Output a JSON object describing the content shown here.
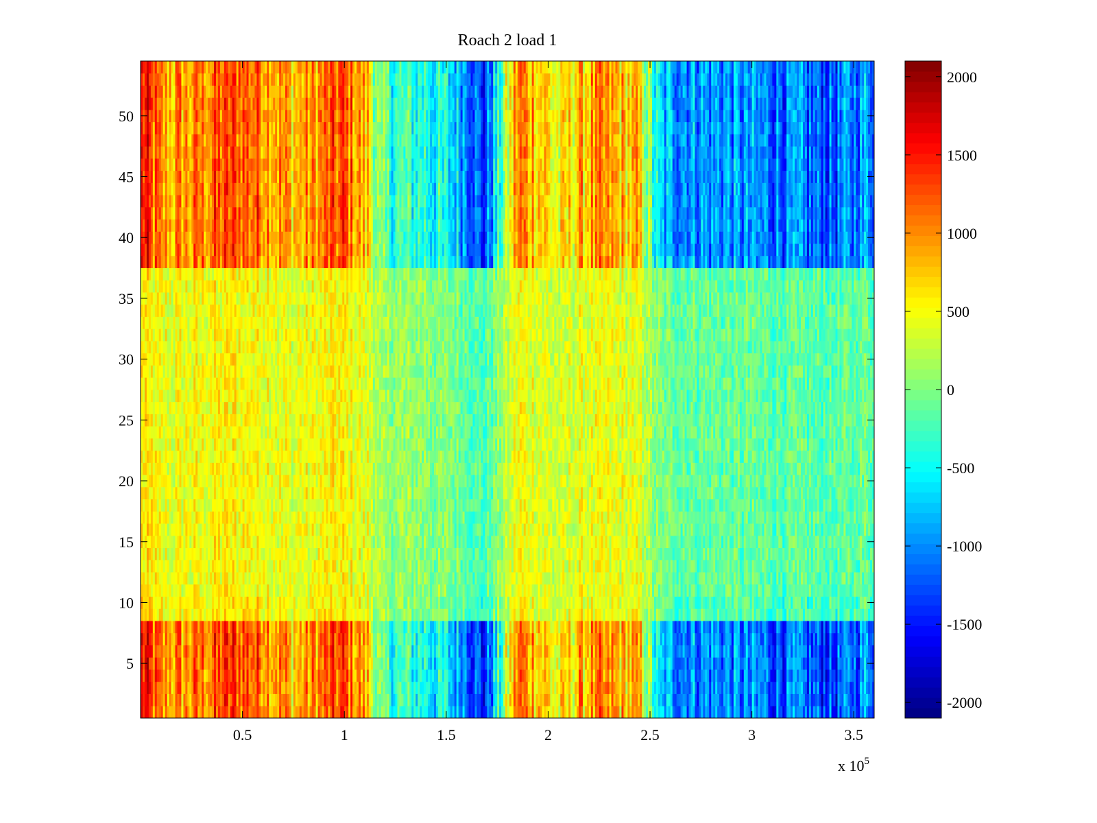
{
  "chart_data": {
    "type": "heatmap",
    "title": "Roach 2 load 1",
    "xlabel": "",
    "ylabel": "",
    "x_range": [
      0,
      360000
    ],
    "y_range": [
      0.5,
      54.5
    ],
    "x_ticks": [
      50000,
      100000,
      150000,
      200000,
      250000,
      300000,
      350000
    ],
    "x_tick_labels": [
      "0.5",
      "1",
      "1.5",
      "2",
      "2.5",
      "3",
      "3.5"
    ],
    "x_exponent_label": "x 10",
    "x_exponent_power": "5",
    "y_ticks": [
      5,
      10,
      15,
      20,
      25,
      30,
      35,
      40,
      45,
      50
    ],
    "y_tick_labels": [
      "5",
      "10",
      "15",
      "20",
      "25",
      "30",
      "35",
      "40",
      "45",
      "50"
    ],
    "colorbar": {
      "colormap": "jet",
      "range": [
        -2100,
        2100
      ],
      "ticks": [
        2000,
        1500,
        1000,
        500,
        0,
        -500,
        -1000,
        -1500,
        -2000
      ],
      "tick_labels": [
        "2000",
        "1500",
        "1000",
        "500",
        "0",
        "-500",
        "-1000",
        "-1500",
        "-2000"
      ]
    },
    "rows": 54,
    "column_profile_strong_rows": [
      [
        0,
        1600
      ],
      [
        5000,
        1300
      ],
      [
        10000,
        900
      ],
      [
        25000,
        1000
      ],
      [
        45000,
        1300
      ],
      [
        60000,
        1200
      ],
      [
        75000,
        800
      ],
      [
        100000,
        1300
      ],
      [
        112000,
        700
      ],
      [
        118000,
        -300
      ],
      [
        140000,
        -400
      ],
      [
        160000,
        -900
      ],
      [
        168000,
        -1500
      ],
      [
        175000,
        -600
      ],
      [
        185000,
        1100
      ],
      [
        195000,
        900
      ],
      [
        205000,
        400
      ],
      [
        215000,
        800
      ],
      [
        225000,
        900
      ],
      [
        245000,
        700
      ],
      [
        255000,
        -900
      ],
      [
        280000,
        -1000
      ],
      [
        300000,
        -1100
      ],
      [
        340000,
        -1300
      ],
      [
        360000,
        -900
      ]
    ],
    "grid": false,
    "legend": "none"
  },
  "colors": {
    "background": "#ffffff",
    "axes": "#000000"
  }
}
